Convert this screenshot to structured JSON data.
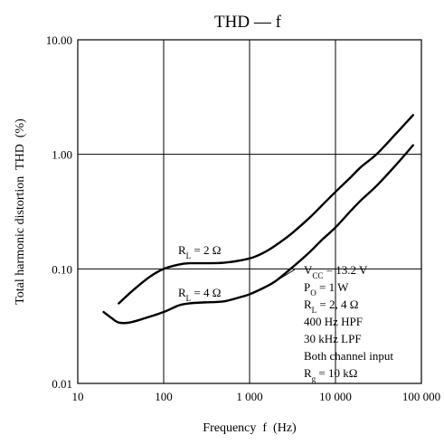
{
  "chart_data": {
    "type": "line",
    "title": "THD — f",
    "xlabel": "Frequency  f  (Hz)",
    "ylabel": "Total harmonic distortion  THD  (%)",
    "x_scale": "log",
    "y_scale": "log",
    "xlim": [
      10,
      100000
    ],
    "ylim": [
      0.01,
      10
    ],
    "x_ticks": [
      {
        "value": 10,
        "label": "10"
      },
      {
        "value": 100,
        "label": "100"
      },
      {
        "value": 1000,
        "label": "1 000"
      },
      {
        "value": 10000,
        "label": "10 000"
      },
      {
        "value": 100000,
        "label": "100 000"
      }
    ],
    "y_ticks": [
      {
        "value": 0.01,
        "label": "0.01"
      },
      {
        "value": 0.1,
        "label": "0.10"
      },
      {
        "value": 1,
        "label": "1.00"
      },
      {
        "value": 10,
        "label": "10.00"
      }
    ],
    "grid": true,
    "series": [
      {
        "name": "RL = 2 Ω",
        "x": [
          30,
          45,
          70,
          100,
          150,
          200,
          300,
          500,
          800,
          1100,
          1500,
          2000,
          3000,
          5000,
          7000,
          10000,
          15000,
          20000,
          30000,
          50000,
          80000
        ],
        "y": [
          0.05,
          0.066,
          0.086,
          0.1,
          0.109,
          0.112,
          0.112,
          0.113,
          0.119,
          0.126,
          0.14,
          0.16,
          0.2,
          0.28,
          0.36,
          0.47,
          0.63,
          0.78,
          1.0,
          1.5,
          2.2
        ]
      },
      {
        "name": "RL = 4 Ω",
        "x": [
          20,
          25,
          30,
          40,
          60,
          100,
          150,
          200,
          300,
          500,
          800,
          1000,
          1500,
          2000,
          3000,
          5000,
          7000,
          10000,
          15000,
          20000,
          30000,
          50000,
          80000
        ],
        "y": [
          0.042,
          0.037,
          0.034,
          0.034,
          0.037,
          0.042,
          0.048,
          0.05,
          0.051,
          0.052,
          0.057,
          0.06,
          0.069,
          0.078,
          0.1,
          0.14,
          0.18,
          0.23,
          0.32,
          0.4,
          0.53,
          0.8,
          1.2
        ]
      }
    ],
    "curve_labels": [
      {
        "main": "R",
        "sub": "L",
        "rest": " = 2 Ω"
      },
      {
        "main": "R",
        "sub": "L",
        "rest": " = 4 Ω"
      }
    ],
    "conditions": [
      {
        "main": "V",
        "sub": "CC",
        "rest": " = 13.2 V"
      },
      {
        "main": "P",
        "sub": "O",
        "rest": " = 1 W"
      },
      {
        "main": "R",
        "sub": "L",
        "rest": " = 2, 4 Ω"
      },
      {
        "main": "400 Hz HPF",
        "sub": "",
        "rest": ""
      },
      {
        "main": "30 kHz LPF",
        "sub": "",
        "rest": ""
      },
      {
        "main": "Both channel input",
        "sub": "",
        "rest": ""
      },
      {
        "main": "R",
        "sub": "g",
        "rest": " = 10 kΩ"
      }
    ],
    "colors": {
      "line": "#000000",
      "grid": "#000000",
      "background": "#ffffff"
    }
  }
}
